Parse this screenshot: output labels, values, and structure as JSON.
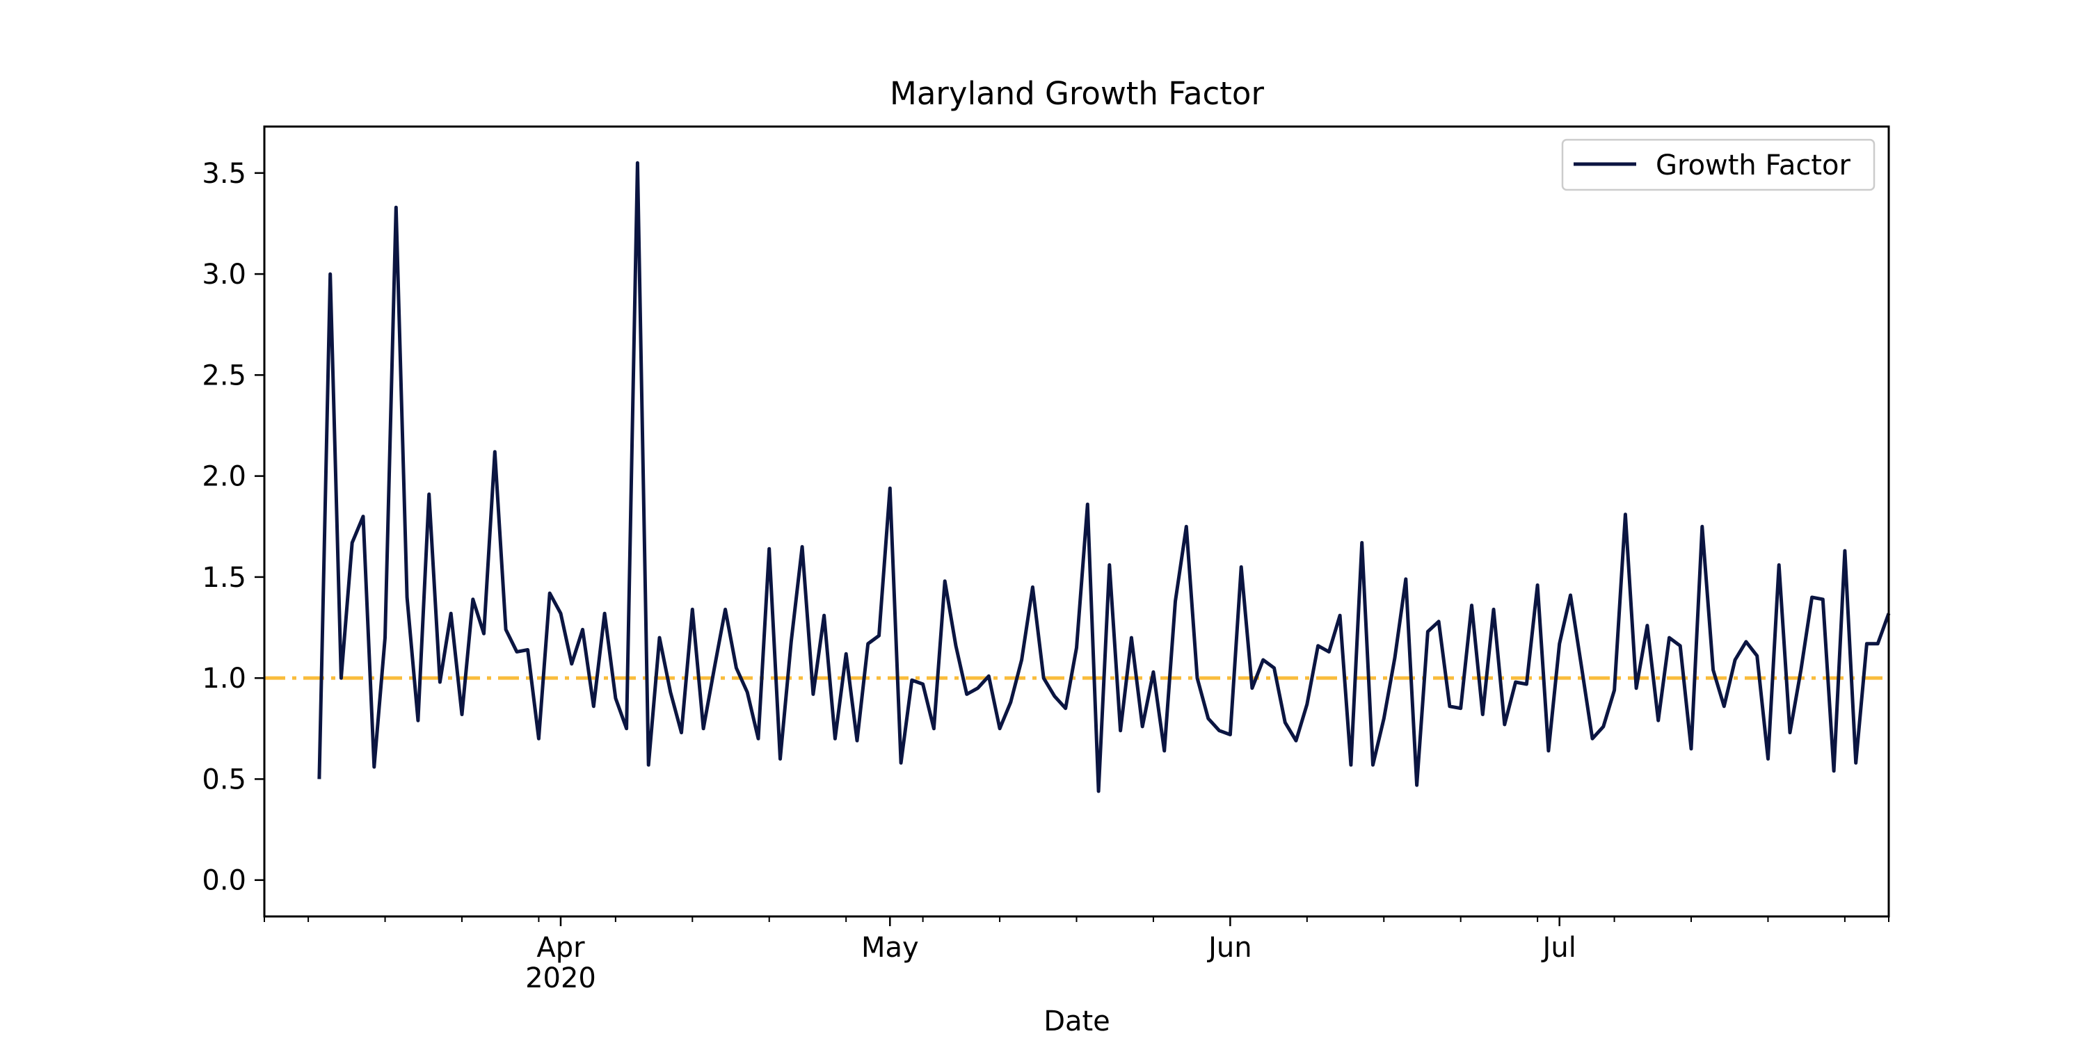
{
  "chart_data": {
    "type": "line",
    "title": "Maryland Growth Factor",
    "xlabel": "Date",
    "ylabel": "",
    "x_start": "2020-03-10",
    "x_range": [
      "2020-03-05",
      "2020-07-31"
    ],
    "ylim": [
      -0.18,
      3.73
    ],
    "x_ticks_major": [
      {
        "date": "2020-04-01",
        "label": "Apr",
        "sublabel": "2020"
      },
      {
        "date": "2020-05-01",
        "label": "May",
        "sublabel": ""
      },
      {
        "date": "2020-06-01",
        "label": "Jun",
        "sublabel": ""
      },
      {
        "date": "2020-07-01",
        "label": "Jul",
        "sublabel": ""
      }
    ],
    "x_ticks_minor": [
      "2020-03-09",
      "2020-03-16",
      "2020-03-23",
      "2020-03-30",
      "2020-04-06",
      "2020-04-13",
      "2020-04-20",
      "2020-04-27",
      "2020-05-04",
      "2020-05-11",
      "2020-05-18",
      "2020-05-25",
      "2020-06-08",
      "2020-06-15",
      "2020-06-22",
      "2020-06-29",
      "2020-07-06",
      "2020-07-13",
      "2020-07-20",
      "2020-07-27"
    ],
    "y_ticks": [
      0.0,
      0.5,
      1.0,
      1.5,
      2.0,
      2.5,
      3.0,
      3.5
    ],
    "y_tick_labels": [
      "0.0",
      "0.5",
      "1.0",
      "1.5",
      "2.0",
      "2.5",
      "3.0",
      "3.5"
    ],
    "legend": {
      "position": "top-right"
    },
    "series": [
      {
        "name": "Growth Factor",
        "color": "#0b1541",
        "values": [
          0.5,
          3.0,
          1.0,
          1.67,
          1.8,
          0.56,
          1.2,
          3.33,
          1.4,
          0.79,
          1.91,
          0.98,
          1.32,
          0.82,
          1.39,
          1.22,
          2.12,
          1.24,
          1.13,
          1.14,
          0.7,
          1.42,
          1.32,
          1.07,
          1.24,
          0.86,
          1.32,
          0.9,
          0.75,
          3.55,
          0.57,
          1.2,
          0.93,
          0.73,
          1.34,
          0.75,
          1.05,
          1.34,
          1.05,
          0.93,
          0.7,
          1.64,
          0.6,
          1.18,
          1.65,
          0.92,
          1.31,
          0.7,
          1.12,
          0.69,
          1.17,
          1.21,
          1.94,
          0.58,
          0.99,
          0.97,
          0.75,
          1.48,
          1.16,
          0.92,
          0.95,
          1.01,
          0.75,
          0.88,
          1.09,
          1.45,
          1.0,
          0.91,
          0.85,
          1.15,
          1.86,
          0.44,
          1.56,
          0.74,
          1.2,
          0.76,
          1.03,
          0.64,
          1.38,
          1.75,
          1.0,
          0.8,
          0.74,
          0.72,
          1.55,
          0.95,
          1.09,
          1.05,
          0.78,
          0.69,
          0.87,
          1.16,
          1.13,
          1.31,
          0.57,
          1.67,
          0.57,
          0.8,
          1.1,
          1.49,
          0.47,
          1.23,
          1.28,
          0.86,
          0.85,
          1.36,
          0.82,
          1.34,
          0.77,
          0.98,
          0.97,
          1.46,
          0.64,
          1.17,
          1.41,
          1.06,
          0.7,
          0.76,
          0.94,
          1.81,
          0.95,
          1.26,
          0.79,
          1.2,
          1.16,
          0.65,
          1.75,
          1.04,
          0.86,
          1.09,
          1.18,
          1.11,
          0.6,
          1.56,
          0.73,
          1.04,
          1.4,
          1.39,
          0.54,
          1.63,
          0.58,
          1.17,
          1.17,
          1.32
        ]
      }
    ],
    "reference_line": {
      "y": 1.0,
      "color": "#f9bc3c",
      "style": "dash-dot"
    }
  }
}
